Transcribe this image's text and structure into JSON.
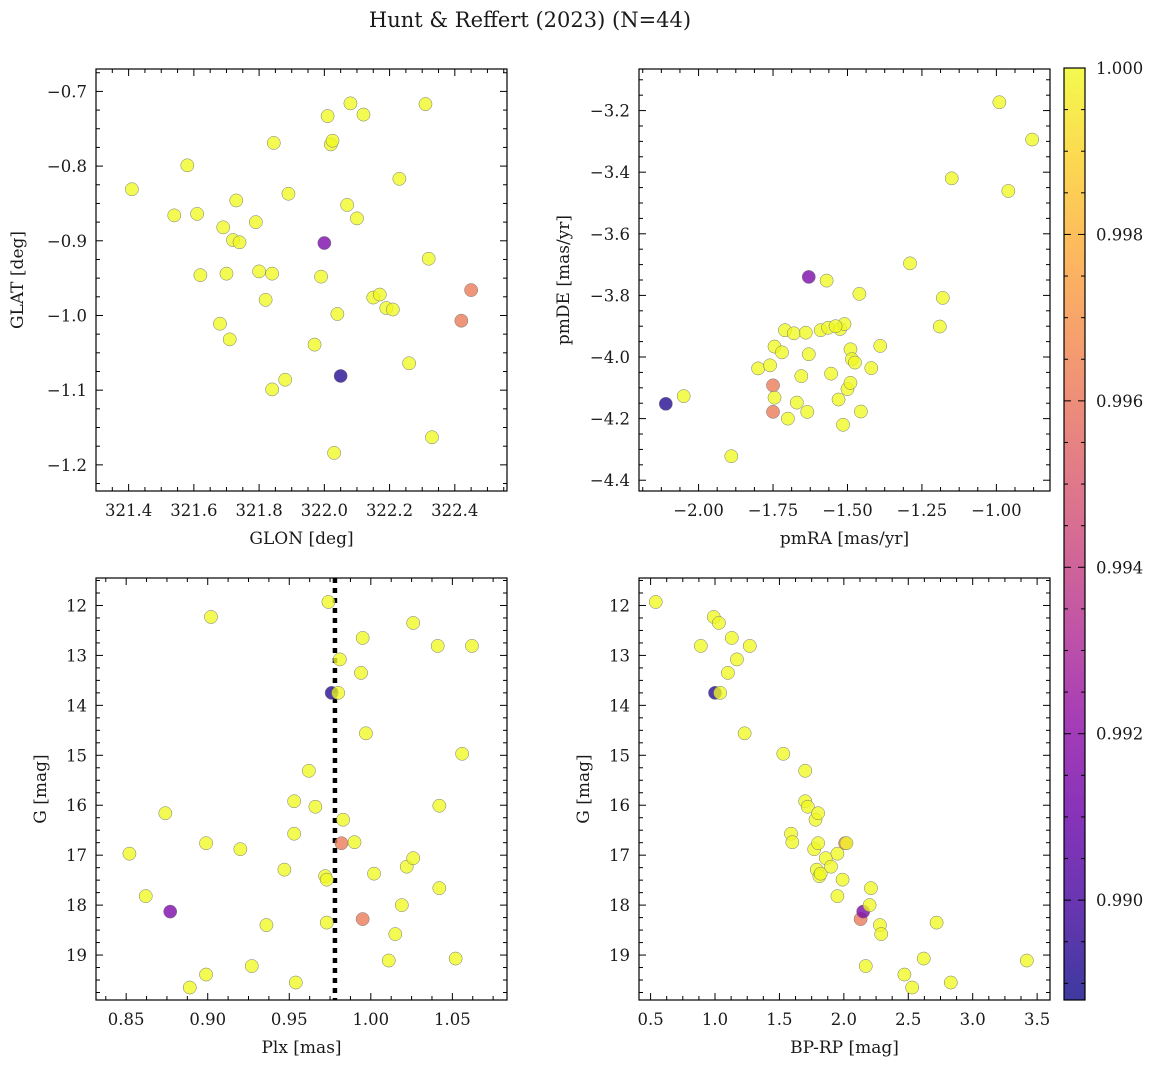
{
  "figure": {
    "title": "Hunt & Reffert (2023) (N=44)"
  },
  "colorbar": {
    "cmap": "plasma",
    "range": [
      0.9888,
      1.0
    ],
    "ticks": [
      0.99,
      0.992,
      0.994,
      0.996,
      0.998,
      1.0
    ],
    "tick_labels": [
      "0.990",
      "0.992",
      "0.994",
      "0.996",
      "0.998",
      "1.000"
    ]
  },
  "chart_data": [
    {
      "type": "scatter",
      "xlabel": "GLON [deg]",
      "ylabel": "GLAT [deg]",
      "xlim": [
        321.3,
        322.56
      ],
      "ylim": [
        -1.235,
        -0.67
      ],
      "xticks": [
        321.4,
        321.6,
        321.8,
        322.0,
        322.2,
        322.4
      ],
      "xtick_labels": [
        "321.4",
        "321.6",
        "321.8",
        "322.0",
        "322.2",
        "322.4"
      ],
      "yticks": [
        -0.7,
        -0.8,
        -0.9,
        -1.0,
        -1.1,
        -1.2
      ],
      "ytick_labels": [
        "−0.7",
        "−0.8",
        "−0.9",
        "−1.0",
        "−1.1",
        "−1.2"
      ],
      "points": [
        {
          "x": 321.41,
          "y": -0.831,
          "c": 1.0
        },
        {
          "x": 321.54,
          "y": -0.866,
          "c": 1.0
        },
        {
          "x": 321.58,
          "y": -0.799,
          "c": 1.0
        },
        {
          "x": 321.61,
          "y": -0.864,
          "c": 1.0
        },
        {
          "x": 321.62,
          "y": -0.946,
          "c": 1.0
        },
        {
          "x": 321.68,
          "y": -1.011,
          "c": 1.0
        },
        {
          "x": 321.69,
          "y": -0.882,
          "c": 1.0
        },
        {
          "x": 321.7,
          "y": -0.944,
          "c": 1.0
        },
        {
          "x": 321.71,
          "y": -1.032,
          "c": 1.0
        },
        {
          "x": 321.72,
          "y": -0.899,
          "c": 1.0
        },
        {
          "x": 321.73,
          "y": -0.846,
          "c": 1.0
        },
        {
          "x": 321.74,
          "y": -0.902,
          "c": 1.0
        },
        {
          "x": 321.79,
          "y": -0.875,
          "c": 1.0
        },
        {
          "x": 321.8,
          "y": -0.941,
          "c": 1.0
        },
        {
          "x": 321.82,
          "y": -0.979,
          "c": 1.0
        },
        {
          "x": 321.84,
          "y": -0.944,
          "c": 1.0
        },
        {
          "x": 321.84,
          "y": -1.099,
          "c": 1.0
        },
        {
          "x": 321.845,
          "y": -0.769,
          "c": 1.0
        },
        {
          "x": 321.88,
          "y": -1.086,
          "c": 1.0
        },
        {
          "x": 321.89,
          "y": -0.837,
          "c": 1.0
        },
        {
          "x": 321.97,
          "y": -1.039,
          "c": 1.0
        },
        {
          "x": 321.99,
          "y": -0.948,
          "c": 1.0
        },
        {
          "x": 322.0,
          "y": -0.903,
          "c": 0.9915
        },
        {
          "x": 322.01,
          "y": -0.733,
          "c": 1.0
        },
        {
          "x": 322.02,
          "y": -0.771,
          "c": 1.0
        },
        {
          "x": 322.025,
          "y": -0.766,
          "c": 1.0
        },
        {
          "x": 322.03,
          "y": -1.184,
          "c": 1.0
        },
        {
          "x": 322.04,
          "y": -0.998,
          "c": 1.0
        },
        {
          "x": 322.05,
          "y": -1.081,
          "c": 0.9892
        },
        {
          "x": 322.07,
          "y": -0.852,
          "c": 1.0
        },
        {
          "x": 322.08,
          "y": -0.716,
          "c": 1.0
        },
        {
          "x": 322.1,
          "y": -0.87,
          "c": 1.0
        },
        {
          "x": 322.12,
          "y": -0.731,
          "c": 1.0
        },
        {
          "x": 322.15,
          "y": -0.976,
          "c": 1.0
        },
        {
          "x": 322.17,
          "y": -0.972,
          "c": 1.0
        },
        {
          "x": 322.19,
          "y": -0.99,
          "c": 1.0
        },
        {
          "x": 322.21,
          "y": -0.992,
          "c": 1.0
        },
        {
          "x": 322.23,
          "y": -0.817,
          "c": 1.0
        },
        {
          "x": 322.26,
          "y": -1.064,
          "c": 1.0
        },
        {
          "x": 322.31,
          "y": -0.717,
          "c": 1.0
        },
        {
          "x": 322.32,
          "y": -0.924,
          "c": 1.0
        },
        {
          "x": 322.33,
          "y": -1.163,
          "c": 1.0
        },
        {
          "x": 322.42,
          "y": -1.007,
          "c": 0.9962
        },
        {
          "x": 322.45,
          "y": -0.966,
          "c": 0.9962
        }
      ]
    },
    {
      "type": "scatter",
      "xlabel": "pmRA [mas/yr]",
      "ylabel": "pmDE [mas/yr]",
      "xlim": [
        -2.2,
        -0.82
      ],
      "ylim": [
        -4.435,
        -3.065
      ],
      "xticks": [
        -2.0,
        -1.75,
        -1.5,
        -1.25,
        -1.0
      ],
      "xtick_labels": [
        "−2.00",
        "−1.75",
        "−1.50",
        "−1.25",
        "−1.00"
      ],
      "yticks": [
        -3.2,
        -3.4,
        -3.6,
        -3.8,
        -4.0,
        -4.2,
        -4.4
      ],
      "ytick_labels": [
        "−3.2",
        "−3.4",
        "−3.6",
        "−3.8",
        "−4.0",
        "−4.2",
        "−4.4"
      ],
      "points": [
        {
          "x": -2.11,
          "y": -4.152,
          "c": 0.9892
        },
        {
          "x": -2.05,
          "y": -4.127,
          "c": 1.0
        },
        {
          "x": -1.89,
          "y": -4.322,
          "c": 1.0
        },
        {
          "x": -1.8,
          "y": -4.037,
          "c": 1.0
        },
        {
          "x": -1.76,
          "y": -4.027,
          "c": 1.0
        },
        {
          "x": -1.75,
          "y": -4.092,
          "c": 0.9962
        },
        {
          "x": -1.75,
          "y": -4.178,
          "c": 0.9962
        },
        {
          "x": -1.745,
          "y": -3.966,
          "c": 1.0
        },
        {
          "x": -1.745,
          "y": -4.132,
          "c": 1.0
        },
        {
          "x": -1.72,
          "y": -3.985,
          "c": 1.0
        },
        {
          "x": -1.71,
          "y": -3.913,
          "c": 1.0
        },
        {
          "x": -1.7,
          "y": -4.2,
          "c": 1.0
        },
        {
          "x": -1.68,
          "y": -3.923,
          "c": 1.0
        },
        {
          "x": -1.67,
          "y": -4.148,
          "c": 1.0
        },
        {
          "x": -1.655,
          "y": -4.062,
          "c": 1.0
        },
        {
          "x": -1.64,
          "y": -3.921,
          "c": 1.0
        },
        {
          "x": -1.635,
          "y": -4.178,
          "c": 1.0
        },
        {
          "x": -1.63,
          "y": -3.991,
          "c": 1.0
        },
        {
          "x": -1.63,
          "y": -3.74,
          "c": 0.9915
        },
        {
          "x": -1.59,
          "y": -3.913,
          "c": 1.0
        },
        {
          "x": -1.57,
          "y": -3.752,
          "c": 1.0
        },
        {
          "x": -1.565,
          "y": -3.905,
          "c": 1.0
        },
        {
          "x": -1.555,
          "y": -4.054,
          "c": 1.0
        },
        {
          "x": -1.53,
          "y": -4.138,
          "c": 1.0
        },
        {
          "x": -1.525,
          "y": -3.909,
          "c": 1.0
        },
        {
          "x": -1.515,
          "y": -4.22,
          "c": 1.0
        },
        {
          "x": -1.51,
          "y": -3.893,
          "c": 1.0
        },
        {
          "x": -1.5,
          "y": -4.104,
          "c": 1.0
        },
        {
          "x": -1.49,
          "y": -3.975,
          "c": 1.0
        },
        {
          "x": -1.49,
          "y": -4.084,
          "c": 1.0
        },
        {
          "x": -1.485,
          "y": -4.007,
          "c": 1.0
        },
        {
          "x": -1.475,
          "y": -4.018,
          "c": 1.0
        },
        {
          "x": -1.46,
          "y": -3.795,
          "c": 1.0
        },
        {
          "x": -1.455,
          "y": -4.177,
          "c": 1.0
        },
        {
          "x": -1.42,
          "y": -4.036,
          "c": 1.0
        },
        {
          "x": -1.39,
          "y": -3.964,
          "c": 1.0
        },
        {
          "x": -1.29,
          "y": -3.696,
          "c": 1.0
        },
        {
          "x": -1.19,
          "y": -3.901,
          "c": 1.0
        },
        {
          "x": -1.18,
          "y": -3.808,
          "c": 1.0
        },
        {
          "x": -1.15,
          "y": -3.42,
          "c": 1.0
        },
        {
          "x": -0.99,
          "y": -3.173,
          "c": 1.0
        },
        {
          "x": -0.96,
          "y": -3.461,
          "c": 1.0
        },
        {
          "x": -0.88,
          "y": -3.294,
          "c": 1.0
        },
        {
          "x": -1.54,
          "y": -3.9,
          "c": 1.0
        }
      ]
    },
    {
      "type": "scatter",
      "xlabel": "Plx [mas]",
      "ylabel": "G [mag]",
      "xlim": [
        0.8315,
        1.0835
      ],
      "ylim": [
        19.9,
        11.45
      ],
      "y_inverted": true,
      "xticks": [
        0.85,
        0.9,
        0.95,
        1.0,
        1.05
      ],
      "xtick_labels": [
        "0.85",
        "0.90",
        "0.95",
        "1.00",
        "1.05"
      ],
      "yticks": [
        12,
        13,
        14,
        15,
        16,
        17,
        18,
        19
      ],
      "ytick_labels": [
        "12",
        "13",
        "14",
        "15",
        "16",
        "17",
        "18",
        "19"
      ],
      "vline": 0.978,
      "points": [
        {
          "x": 0.852,
          "y": 16.97,
          "c": 1.0
        },
        {
          "x": 0.862,
          "y": 17.82,
          "c": 1.0
        },
        {
          "x": 0.874,
          "y": 16.16,
          "c": 1.0
        },
        {
          "x": 0.877,
          "y": 18.13,
          "c": 0.9915
        },
        {
          "x": 0.889,
          "y": 19.65,
          "c": 1.0
        },
        {
          "x": 0.899,
          "y": 19.39,
          "c": 1.0
        },
        {
          "x": 0.899,
          "y": 16.76,
          "c": 1.0
        },
        {
          "x": 0.902,
          "y": 12.23,
          "c": 1.0
        },
        {
          "x": 0.92,
          "y": 16.88,
          "c": 1.0
        },
        {
          "x": 0.927,
          "y": 19.22,
          "c": 1.0
        },
        {
          "x": 0.936,
          "y": 18.4,
          "c": 1.0
        },
        {
          "x": 0.947,
          "y": 17.29,
          "c": 1.0
        },
        {
          "x": 0.953,
          "y": 15.92,
          "c": 1.0
        },
        {
          "x": 0.953,
          "y": 16.57,
          "c": 1.0
        },
        {
          "x": 0.954,
          "y": 19.55,
          "c": 1.0
        },
        {
          "x": 0.962,
          "y": 15.31,
          "c": 1.0
        },
        {
          "x": 0.966,
          "y": 16.03,
          "c": 1.0
        },
        {
          "x": 0.972,
          "y": 17.42,
          "c": 1.0
        },
        {
          "x": 0.973,
          "y": 17.49,
          "c": 1.0
        },
        {
          "x": 0.973,
          "y": 18.35,
          "c": 1.0
        },
        {
          "x": 0.974,
          "y": 11.93,
          "c": 1.0
        },
        {
          "x": 0.976,
          "y": 13.75,
          "c": 0.9892
        },
        {
          "x": 0.98,
          "y": 13.75,
          "c": 1.0
        },
        {
          "x": 0.981,
          "y": 13.08,
          "c": 1.0
        },
        {
          "x": 0.982,
          "y": 16.76,
          "c": 0.9962
        },
        {
          "x": 0.983,
          "y": 16.29,
          "c": 1.0
        },
        {
          "x": 0.99,
          "y": 16.74,
          "c": 1.0
        },
        {
          "x": 0.994,
          "y": 13.35,
          "c": 1.0
        },
        {
          "x": 0.995,
          "y": 12.65,
          "c": 1.0
        },
        {
          "x": 0.995,
          "y": 18.28,
          "c": 0.9962
        },
        {
          "x": 0.997,
          "y": 14.56,
          "c": 1.0
        },
        {
          "x": 1.002,
          "y": 17.37,
          "c": 1.0
        },
        {
          "x": 1.011,
          "y": 19.11,
          "c": 1.0
        },
        {
          "x": 1.015,
          "y": 18.58,
          "c": 1.0
        },
        {
          "x": 1.019,
          "y": 18.0,
          "c": 1.0
        },
        {
          "x": 1.022,
          "y": 17.23,
          "c": 1.0
        },
        {
          "x": 1.026,
          "y": 12.35,
          "c": 1.0
        },
        {
          "x": 1.026,
          "y": 17.06,
          "c": 1.0
        },
        {
          "x": 1.041,
          "y": 12.81,
          "c": 1.0
        },
        {
          "x": 1.042,
          "y": 17.66,
          "c": 1.0
        },
        {
          "x": 1.042,
          "y": 16.01,
          "c": 1.0
        },
        {
          "x": 1.052,
          "y": 19.07,
          "c": 1.0
        },
        {
          "x": 1.056,
          "y": 14.97,
          "c": 1.0
        },
        {
          "x": 1.062,
          "y": 12.81,
          "c": 1.0
        }
      ]
    },
    {
      "type": "scatter",
      "xlabel": "BP-RP [mag]",
      "ylabel": "G [mag]",
      "xlim": [
        0.41,
        3.6
      ],
      "ylim": [
        19.9,
        11.45
      ],
      "y_inverted": true,
      "xticks": [
        0.5,
        1.0,
        1.5,
        2.0,
        2.5,
        3.0,
        3.5
      ],
      "xtick_labels": [
        "0.5",
        "1.0",
        "1.5",
        "2.0",
        "2.5",
        "3.0",
        "3.5"
      ],
      "yticks": [
        12,
        13,
        14,
        15,
        16,
        17,
        18,
        19
      ],
      "ytick_labels": [
        "12",
        "13",
        "14",
        "15",
        "16",
        "17",
        "18",
        "19"
      ],
      "points": [
        {
          "x": 0.54,
          "y": 11.93,
          "c": 1.0
        },
        {
          "x": 0.89,
          "y": 12.81,
          "c": 1.0
        },
        {
          "x": 0.99,
          "y": 12.23,
          "c": 1.0
        },
        {
          "x": 1.03,
          "y": 12.35,
          "c": 1.0
        },
        {
          "x": 1.0,
          "y": 13.75,
          "c": 0.9892
        },
        {
          "x": 1.04,
          "y": 13.75,
          "c": 1.0
        },
        {
          "x": 1.1,
          "y": 13.35,
          "c": 1.0
        },
        {
          "x": 1.13,
          "y": 12.65,
          "c": 1.0
        },
        {
          "x": 1.17,
          "y": 13.08,
          "c": 1.0
        },
        {
          "x": 1.27,
          "y": 12.81,
          "c": 1.0
        },
        {
          "x": 1.23,
          "y": 14.56,
          "c": 1.0
        },
        {
          "x": 1.53,
          "y": 14.97,
          "c": 1.0
        },
        {
          "x": 1.59,
          "y": 16.57,
          "c": 1.0
        },
        {
          "x": 1.6,
          "y": 16.74,
          "c": 1.0
        },
        {
          "x": 1.7,
          "y": 15.31,
          "c": 1.0
        },
        {
          "x": 1.7,
          "y": 15.92,
          "c": 1.0
        },
        {
          "x": 1.72,
          "y": 16.03,
          "c": 1.0
        },
        {
          "x": 1.78,
          "y": 16.29,
          "c": 1.0
        },
        {
          "x": 1.8,
          "y": 16.16,
          "c": 1.0
        },
        {
          "x": 1.77,
          "y": 16.88,
          "c": 1.0
        },
        {
          "x": 1.8,
          "y": 16.76,
          "c": 1.0
        },
        {
          "x": 1.79,
          "y": 17.29,
          "c": 1.0
        },
        {
          "x": 1.81,
          "y": 17.42,
          "c": 1.0
        },
        {
          "x": 1.82,
          "y": 17.37,
          "c": 1.0
        },
        {
          "x": 1.86,
          "y": 17.06,
          "c": 1.0
        },
        {
          "x": 1.9,
          "y": 17.23,
          "c": 1.0
        },
        {
          "x": 1.95,
          "y": 16.97,
          "c": 1.0
        },
        {
          "x": 1.95,
          "y": 17.82,
          "c": 1.0
        },
        {
          "x": 1.99,
          "y": 17.49,
          "c": 1.0
        },
        {
          "x": 2.01,
          "y": 16.76,
          "c": 0.9962
        },
        {
          "x": 2.13,
          "y": 18.28,
          "c": 0.9962
        },
        {
          "x": 2.15,
          "y": 18.13,
          "c": 0.9915
        },
        {
          "x": 2.17,
          "y": 19.22,
          "c": 1.0
        },
        {
          "x": 2.2,
          "y": 18.0,
          "c": 1.0
        },
        {
          "x": 2.21,
          "y": 17.66,
          "c": 1.0
        },
        {
          "x": 2.28,
          "y": 18.4,
          "c": 1.0
        },
        {
          "x": 2.29,
          "y": 18.58,
          "c": 1.0
        },
        {
          "x": 2.47,
          "y": 19.39,
          "c": 1.0
        },
        {
          "x": 2.53,
          "y": 19.65,
          "c": 1.0
        },
        {
          "x": 2.62,
          "y": 19.07,
          "c": 1.0
        },
        {
          "x": 2.72,
          "y": 18.35,
          "c": 1.0
        },
        {
          "x": 2.83,
          "y": 19.55,
          "c": 1.0
        },
        {
          "x": 3.42,
          "y": 19.11,
          "c": 1.0
        },
        {
          "x": 2.02,
          "y": 16.76,
          "c": 1.0
        }
      ]
    }
  ]
}
